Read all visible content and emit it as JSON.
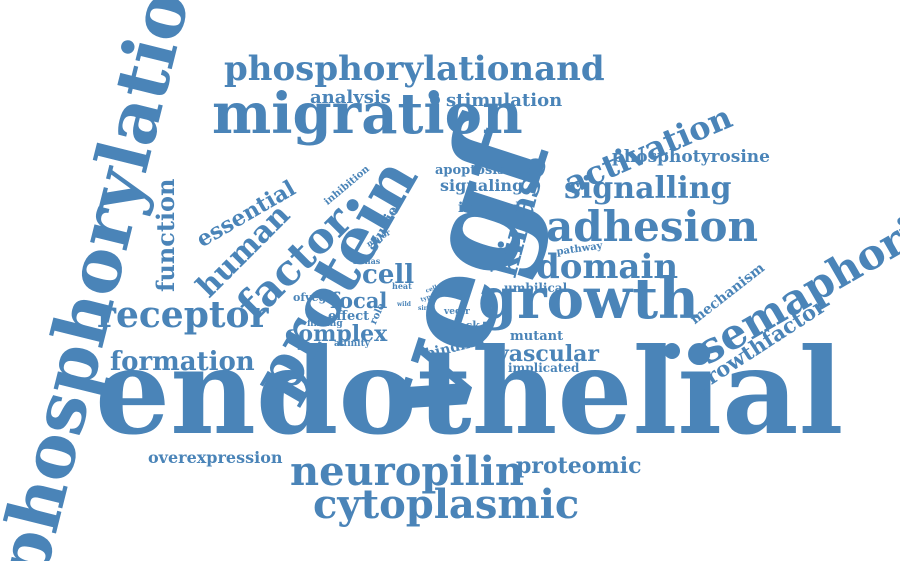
{
  "color": "#4a84b8",
  "words": [
    "phosphorylation",
    "endothelial",
    "vegf",
    "protein",
    "migration",
    "growth",
    "phosphorylationand",
    "adhesion",
    "semaphorin",
    "factor",
    "kinase",
    "activation",
    "signalling",
    "domain",
    "receptor",
    "neuropilin",
    "cytoplasmic",
    "function",
    "essential",
    "human",
    "analysis",
    "stimulation",
    "phosphotyrosine",
    "formation",
    "complex",
    "cell",
    "focal",
    "vascular",
    "proteomic",
    "overexpression",
    "growthfactor",
    "mechanism",
    "implicated",
    "umbilical",
    "mutant",
    "binding",
    "apoptosis",
    "signaling",
    "induced",
    "studies",
    "inhibition",
    "pathway",
    "shock",
    "effect",
    "ofvegf",
    "finding",
    "affinity",
    "role",
    "major",
    "sirnas",
    "heat",
    "cells",
    "wild",
    "type",
    "sirna",
    "vegfr"
  ]
}
